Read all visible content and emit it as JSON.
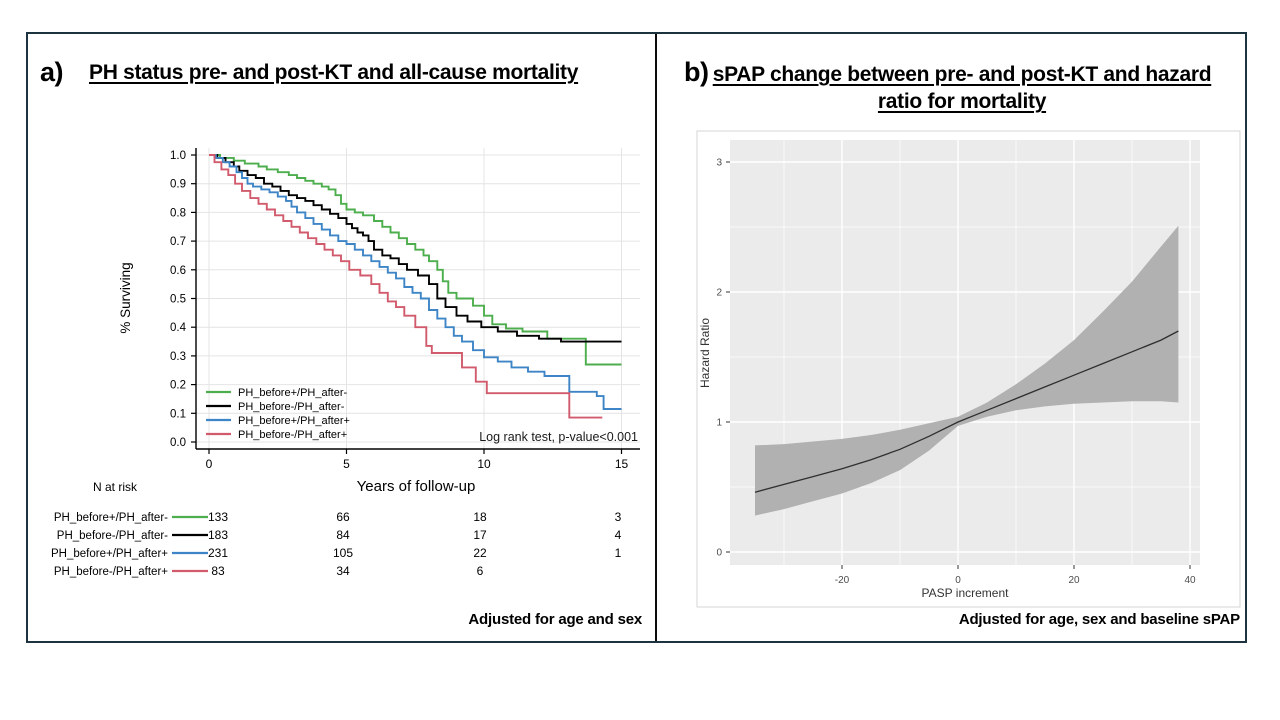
{
  "panel_a": {
    "label": "a)",
    "title": "PH status pre- and post-KT and all-cause mortality",
    "footnote": "Adjusted for age and sex"
  },
  "panel_b": {
    "label": "b)",
    "title": "sPAP change between pre- and post-KT and hazard ratio for mortality",
    "footnote": "Adjusted for age, sex and baseline sPAP"
  },
  "colors": {
    "frame_border": "#1e3340",
    "divider": "#0b0b0b",
    "km_grid": "#e4e4e4",
    "km_axis": "#000000",
    "hr_panel_bg": "#ebebeb",
    "hr_grid": "#ffffff",
    "hr_band": "#b1b1b1",
    "hr_line": "#2f2f2f",
    "hr_tick_text": "#4d4d4d",
    "hr_figure_border": "#d4d4d4"
  },
  "chart_data": [
    {
      "type": "line",
      "subtype": "kaplan_meier_steps",
      "title": "PH status pre- and post-KT and all-cause mortality",
      "xlabel": "Years of follow-up",
      "ylabel": "% Surviving",
      "xlim": [
        0,
        15
      ],
      "ylim": [
        0.0,
        1.0
      ],
      "grid": true,
      "legend_position": "inside-lower-left",
      "annotation": "Log rank test, p-value<0.001",
      "xticks": [
        {
          "v": 0,
          "label": "0"
        },
        {
          "v": 5,
          "label": "5"
        },
        {
          "v": 10,
          "label": "10"
        },
        {
          "v": 15,
          "label": "15"
        }
      ],
      "yticks": [
        {
          "v": 0.0,
          "label": "0.0"
        },
        {
          "v": 0.1,
          "label": "0.1"
        },
        {
          "v": 0.2,
          "label": "0.2"
        },
        {
          "v": 0.3,
          "label": "0.3"
        },
        {
          "v": 0.4,
          "label": "0.4"
        },
        {
          "v": 0.5,
          "label": "0.5"
        },
        {
          "v": 0.6,
          "label": "0.6"
        },
        {
          "v": 0.7,
          "label": "0.7"
        },
        {
          "v": 0.8,
          "label": "0.8"
        },
        {
          "v": 0.9,
          "label": "0.9"
        },
        {
          "v": 1.0,
          "label": "1.0"
        }
      ],
      "series": [
        {
          "name": "PH_before+/PH_after-",
          "color": "#4cae4c",
          "steps": [
            [
              0,
              1.0
            ],
            [
              0.4,
              0.99
            ],
            [
              0.9,
              0.98
            ],
            [
              1.3,
              0.97
            ],
            [
              1.8,
              0.96
            ],
            [
              2.1,
              0.95
            ],
            [
              2.5,
              0.94
            ],
            [
              2.9,
              0.93
            ],
            [
              3.2,
              0.92
            ],
            [
              3.5,
              0.91
            ],
            [
              3.8,
              0.9
            ],
            [
              4.1,
              0.89
            ],
            [
              4.35,
              0.88
            ],
            [
              4.6,
              0.86
            ],
            [
              4.8,
              0.83
            ],
            [
              5.0,
              0.81
            ],
            [
              5.3,
              0.8
            ],
            [
              5.6,
              0.79
            ],
            [
              6.0,
              0.77
            ],
            [
              6.3,
              0.75
            ],
            [
              6.6,
              0.73
            ],
            [
              6.9,
              0.71
            ],
            [
              7.2,
              0.69
            ],
            [
              7.5,
              0.67
            ],
            [
              7.8,
              0.65
            ],
            [
              8.0,
              0.63
            ],
            [
              8.3,
              0.6
            ],
            [
              8.5,
              0.56
            ],
            [
              8.7,
              0.52
            ],
            [
              9.0,
              0.5
            ],
            [
              9.6,
              0.475
            ],
            [
              10.0,
              0.44
            ],
            [
              10.3,
              0.41
            ],
            [
              10.8,
              0.395
            ],
            [
              11.4,
              0.385
            ],
            [
              12.3,
              0.36
            ],
            [
              13.7,
              0.27
            ],
            [
              15,
              0.27
            ]
          ]
        },
        {
          "name": "PH_before-/PH_after-",
          "color": "#000000",
          "steps": [
            [
              0,
              1.0
            ],
            [
              0.3,
              0.99
            ],
            [
              0.6,
              0.975
            ],
            [
              0.9,
              0.96
            ],
            [
              1.1,
              0.945
            ],
            [
              1.4,
              0.93
            ],
            [
              1.7,
              0.92
            ],
            [
              2.0,
              0.9
            ],
            [
              2.3,
              0.89
            ],
            [
              2.6,
              0.875
            ],
            [
              2.9,
              0.86
            ],
            [
              3.2,
              0.85
            ],
            [
              3.5,
              0.84
            ],
            [
              3.8,
              0.825
            ],
            [
              4.1,
              0.81
            ],
            [
              4.4,
              0.795
            ],
            [
              4.7,
              0.78
            ],
            [
              5.0,
              0.76
            ],
            [
              5.2,
              0.745
            ],
            [
              5.4,
              0.73
            ],
            [
              5.6,
              0.72
            ],
            [
              5.8,
              0.7
            ],
            [
              6.0,
              0.67
            ],
            [
              6.3,
              0.65
            ],
            [
              6.6,
              0.64
            ],
            [
              6.9,
              0.62
            ],
            [
              7.2,
              0.6
            ],
            [
              7.6,
              0.58
            ],
            [
              8.0,
              0.55
            ],
            [
              8.3,
              0.5
            ],
            [
              8.6,
              0.47
            ],
            [
              9.0,
              0.44
            ],
            [
              9.4,
              0.42
            ],
            [
              9.9,
              0.4
            ],
            [
              10.5,
              0.385
            ],
            [
              11.2,
              0.37
            ],
            [
              12.0,
              0.36
            ],
            [
              12.8,
              0.35
            ],
            [
              15,
              0.35
            ]
          ]
        },
        {
          "name": "PH_before+/PH_after+",
          "color": "#3d85c6",
          "steps": [
            [
              0,
              1.0
            ],
            [
              0.25,
              0.99
            ],
            [
              0.5,
              0.975
            ],
            [
              0.75,
              0.96
            ],
            [
              1.0,
              0.94
            ],
            [
              1.2,
              0.92
            ],
            [
              1.4,
              0.9
            ],
            [
              1.6,
              0.89
            ],
            [
              1.9,
              0.88
            ],
            [
              2.2,
              0.87
            ],
            [
              2.5,
              0.855
            ],
            [
              2.8,
              0.84
            ],
            [
              3.0,
              0.82
            ],
            [
              3.2,
              0.8
            ],
            [
              3.5,
              0.78
            ],
            [
              3.8,
              0.76
            ],
            [
              4.1,
              0.74
            ],
            [
              4.4,
              0.72
            ],
            [
              4.7,
              0.7
            ],
            [
              5.0,
              0.69
            ],
            [
              5.3,
              0.67
            ],
            [
              5.6,
              0.65
            ],
            [
              5.9,
              0.63
            ],
            [
              6.2,
              0.61
            ],
            [
              6.5,
              0.59
            ],
            [
              6.8,
              0.57
            ],
            [
              7.1,
              0.54
            ],
            [
              7.4,
              0.52
            ],
            [
              7.7,
              0.5
            ],
            [
              8.0,
              0.46
            ],
            [
              8.3,
              0.43
            ],
            [
              8.6,
              0.4
            ],
            [
              8.9,
              0.37
            ],
            [
              9.2,
              0.35
            ],
            [
              9.6,
              0.32
            ],
            [
              10.0,
              0.295
            ],
            [
              10.5,
              0.28
            ],
            [
              11.0,
              0.26
            ],
            [
              11.6,
              0.245
            ],
            [
              12.2,
              0.23
            ],
            [
              13.1,
              0.175
            ],
            [
              14.1,
              0.16
            ],
            [
              14.35,
              0.115
            ],
            [
              15,
              0.115
            ]
          ]
        },
        {
          "name": "PH_before-/PH_after+",
          "color": "#d15b6c",
          "steps": [
            [
              0,
              1.0
            ],
            [
              0.2,
              0.975
            ],
            [
              0.45,
              0.95
            ],
            [
              0.7,
              0.93
            ],
            [
              0.95,
              0.9
            ],
            [
              1.2,
              0.875
            ],
            [
              1.5,
              0.85
            ],
            [
              1.8,
              0.83
            ],
            [
              2.1,
              0.81
            ],
            [
              2.4,
              0.79
            ],
            [
              2.7,
              0.77
            ],
            [
              3.0,
              0.75
            ],
            [
              3.3,
              0.73
            ],
            [
              3.6,
              0.71
            ],
            [
              3.9,
              0.69
            ],
            [
              4.2,
              0.67
            ],
            [
              4.5,
              0.65
            ],
            [
              4.8,
              0.63
            ],
            [
              5.1,
              0.6
            ],
            [
              5.5,
              0.58
            ],
            [
              5.9,
              0.55
            ],
            [
              6.2,
              0.52
            ],
            [
              6.5,
              0.49
            ],
            [
              6.8,
              0.47
            ],
            [
              7.1,
              0.44
            ],
            [
              7.5,
              0.4
            ],
            [
              7.9,
              0.335
            ],
            [
              8.1,
              0.31
            ],
            [
              9.2,
              0.26
            ],
            [
              9.7,
              0.21
            ],
            [
              10.1,
              0.17
            ],
            [
              13.1,
              0.085
            ],
            [
              14.3,
              0.085
            ]
          ]
        }
      ],
      "risk_table": {
        "label": "N at risk",
        "times": [
          0,
          5,
          10,
          15
        ],
        "rows": [
          {
            "name": "PH_before+/PH_after-",
            "color": "#4cae4c",
            "counts": [
              "133",
              "66",
              "18",
              "3"
            ]
          },
          {
            "name": "PH_before-/PH_after-",
            "color": "#000000",
            "counts": [
              "183",
              "84",
              "17",
              "4"
            ]
          },
          {
            "name": "PH_before+/PH_after+",
            "color": "#3d85c6",
            "counts": [
              "231",
              "105",
              "22",
              "1"
            ]
          },
          {
            "name": "PH_before-/PH_after+",
            "color": "#d15b6c",
            "counts": [
              "83",
              "34",
              "6",
              ""
            ]
          }
        ]
      }
    },
    {
      "type": "line",
      "subtype": "spline_with_confidence_band",
      "title": "sPAP change between pre- and post-KT and hazard ratio for mortality",
      "xlabel": "PASP increment",
      "ylabel": "Hazard Ratio",
      "xlim": [
        -39.5,
        41.7
      ],
      "ylim": [
        -0.1,
        3.17
      ],
      "grid": true,
      "xticks": [
        {
          "v": -20,
          "label": "-20"
        },
        {
          "v": 0,
          "label": "0"
        },
        {
          "v": 20,
          "label": "20"
        },
        {
          "v": 40,
          "label": "40"
        }
      ],
      "yticks": [
        {
          "v": 0,
          "label": "0"
        },
        {
          "v": 1,
          "label": "1"
        },
        {
          "v": 2,
          "label": "2"
        },
        {
          "v": 3,
          "label": "3"
        }
      ],
      "xticks_minor": [
        -30,
        -10,
        10,
        30
      ],
      "yticks_minor": [
        0.5,
        1.5,
        2.5
      ],
      "x": [
        -35,
        -30,
        -25,
        -20,
        -15,
        -10,
        -5,
        0,
        5,
        10,
        15,
        20,
        25,
        30,
        35,
        38
      ],
      "hazard_ratio": [
        0.46,
        0.52,
        0.58,
        0.64,
        0.71,
        0.79,
        0.89,
        1.0,
        1.09,
        1.18,
        1.27,
        1.36,
        1.45,
        1.54,
        1.63,
        1.7
      ],
      "ci_lower": [
        0.28,
        0.33,
        0.39,
        0.45,
        0.53,
        0.63,
        0.78,
        0.97,
        1.04,
        1.09,
        1.12,
        1.14,
        1.15,
        1.16,
        1.16,
        1.15
      ],
      "ci_upper": [
        0.82,
        0.83,
        0.85,
        0.87,
        0.9,
        0.94,
        0.99,
        1.04,
        1.15,
        1.29,
        1.45,
        1.63,
        1.85,
        2.08,
        2.35,
        2.51
      ]
    }
  ]
}
